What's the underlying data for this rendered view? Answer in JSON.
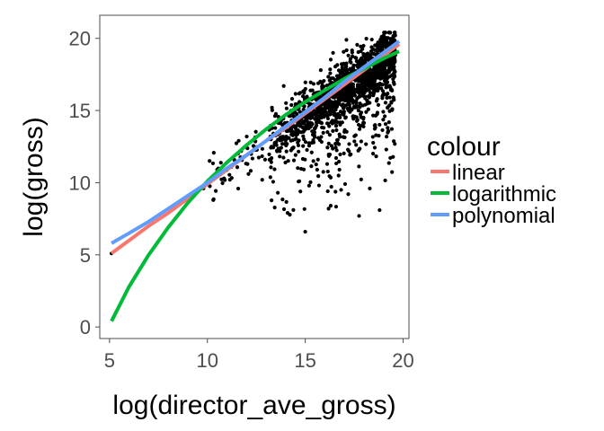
{
  "chart_data": {
    "type": "scatter",
    "xlabel": "log(director_ave_gross)",
    "ylabel": "log(gross)",
    "xlim": [
      4.5,
      20.3
    ],
    "ylim": [
      -0.8,
      21.6
    ],
    "x_ticks": [
      5,
      10,
      15,
      20
    ],
    "y_ticks": [
      0,
      5,
      10,
      15,
      20
    ],
    "grid": false,
    "legend": {
      "title": "colour",
      "position": "right",
      "entries": [
        {
          "label": "linear",
          "color": "#F8766D"
        },
        {
          "label": "logarithmic",
          "color": "#00BA38"
        },
        {
          "label": "polynomial",
          "color": "#619CFF"
        }
      ]
    },
    "points": {
      "color": "#000000",
      "description_cluster": {
        "x_range": [
          13,
          20
        ],
        "y_range": [
          8,
          20.5
        ]
      },
      "notable": [
        [
          5.1,
          5.1
        ],
        [
          9.8,
          9.6
        ],
        [
          10.0,
          9.9
        ],
        [
          10.3,
          8.8
        ],
        [
          10.5,
          10.9
        ],
        [
          11.6,
          12.9
        ],
        [
          12.1,
          10.6
        ],
        [
          12.8,
          10.2
        ],
        [
          13.6,
          9.3
        ],
        [
          14.7,
          10.1
        ],
        [
          15.0,
          6.6
        ],
        [
          16.3,
          8.4
        ],
        [
          17.2,
          9.2
        ],
        [
          18.8,
          8.1
        ],
        [
          18.3,
          9.6
        ],
        [
          19.2,
          18.2
        ],
        [
          19.6,
          20.2
        ],
        [
          13.9,
          16.7
        ],
        [
          14.7,
          15.6
        ],
        [
          13.3,
          15.2
        ]
      ]
    },
    "series": [
      {
        "name": "linear",
        "color": "#F8766D",
        "x": [
          5.1,
          6,
          7,
          8,
          9,
          10,
          11,
          12,
          13,
          14,
          15,
          16,
          17,
          18,
          19,
          19.8
        ],
        "y": [
          5.1,
          6.0,
          7.0,
          7.9,
          8.9,
          9.9,
          10.9,
          11.9,
          12.9,
          13.8,
          14.8,
          15.8,
          16.8,
          17.8,
          18.8,
          19.6
        ]
      },
      {
        "name": "logarithmic",
        "color": "#00BA38",
        "x": [
          5.1,
          6,
          7,
          8,
          9,
          10,
          11,
          12,
          13,
          14,
          15,
          16,
          17,
          18,
          19,
          19.8
        ],
        "y": [
          0.4,
          2.8,
          5.0,
          6.9,
          8.6,
          10.1,
          11.4,
          12.6,
          13.7,
          14.7,
          15.6,
          16.4,
          17.2,
          17.9,
          18.6,
          19.1
        ]
      },
      {
        "name": "polynomial",
        "color": "#619CFF",
        "x": [
          5.1,
          6,
          7,
          8,
          9,
          10,
          11,
          12,
          13,
          14,
          15,
          16,
          17,
          18,
          19,
          19.8
        ],
        "y": [
          5.8,
          6.5,
          7.3,
          8.2,
          9.1,
          10.0,
          11.0,
          11.9,
          12.9,
          13.9,
          14.9,
          15.9,
          17.0,
          18.0,
          19.0,
          19.8
        ]
      }
    ]
  }
}
